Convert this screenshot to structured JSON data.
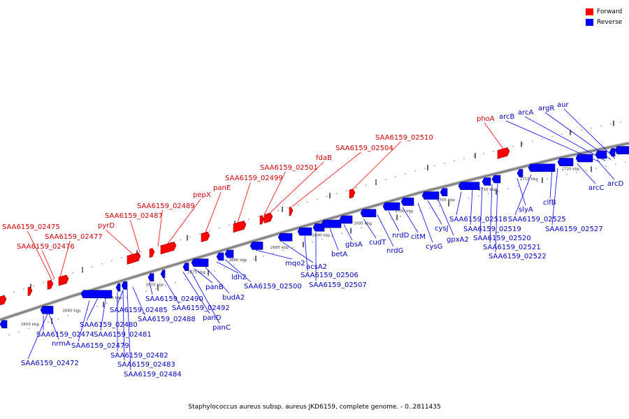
{
  "colors": {
    "forward": "#ff0000",
    "reverse": "#0000ff",
    "backbone": "#808080",
    "text_forward": "#cc0000",
    "text_reverse": "#0000bb"
  },
  "legend": [
    {
      "label": "Forward",
      "color": "#ff0000"
    },
    {
      "label": "Reverse",
      "color": "#0000ff"
    }
  ],
  "footer": "Staphylococcus aureus subsp. aureus JKD6159, complete genome. - 0..2811435",
  "scale_labels": [
    "2655 kbp",
    "2660 kbp",
    "2665 kbp",
    "2670 kbp",
    "2675 kbp",
    "2680 kbp",
    "2685 kbp",
    "2690 kbp",
    "2695 kbp",
    "2700 kbp",
    "2705 kbp",
    "2710 kbp",
    "2715 kbp",
    "2720 kbp"
  ],
  "forward_genes": [
    "SAA6159_02475",
    "SAA6159_02477",
    "SAA6159_02476",
    "pyrD",
    "SAA6159_02487",
    "SAA6159_02489",
    "pepX",
    "panE",
    "SAA6159_02499",
    "SAA6159_02501",
    "fdaB",
    "SAA6159_02504",
    "SAA6159_02510",
    "phoA"
  ],
  "reverse_upper_genes": [
    "arcB",
    "arcA",
    "argR",
    "aur"
  ],
  "reverse_genes": [
    "SAA6159_02472",
    "nrmA",
    "SAA6159_02474",
    "SAA6159_02479",
    "SAA6159_02480",
    "SAA6159_02481",
    "SAA6159_02482",
    "SAA6159_02483",
    "SAA6159_02484",
    "SAA6159_02485",
    "SAA6159_02488",
    "SAA6159_02490",
    "SAA6159_02492",
    "panD",
    "panC",
    "panB",
    "budA2",
    "ldh2",
    "SAA6159_02500",
    "mqo2",
    "acsA2",
    "SAA6159_02506",
    "SAA6159_02507",
    "betA",
    "gbsA",
    "cudT",
    "nrdG",
    "nrdD",
    "citM",
    "cysG",
    "cysJ",
    "gpxA2",
    "SAA6159_02518",
    "SAA6159_02519",
    "SAA6159_02520",
    "SAA6159_02521",
    "SAA6159_02522",
    "slyA",
    "SAA6159_02525",
    "clfB",
    "SAA6159_02527",
    "arcC",
    "arcD"
  ]
}
